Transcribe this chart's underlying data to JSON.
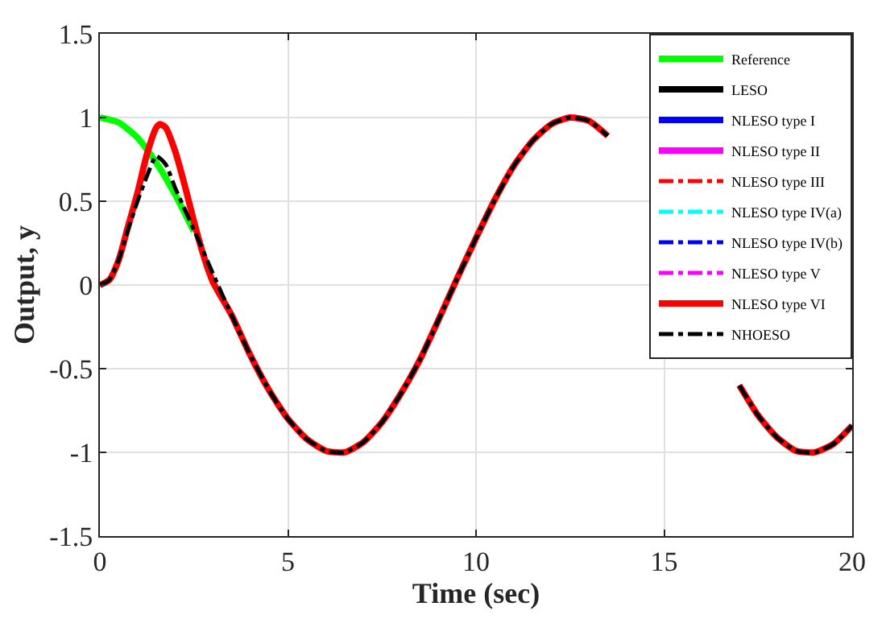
{
  "chart_data": {
    "type": "line",
    "xlabel": "Time (sec)",
    "ylabel": "Output, y",
    "xlim": [
      0,
      20
    ],
    "ylim": [
      -1.5,
      1.5
    ],
    "xticks": [
      0,
      5,
      10,
      15,
      20
    ],
    "yticks": [
      -1.5,
      -1,
      -0.5,
      0,
      0.5,
      1,
      1.5
    ],
    "grid": true,
    "legend": "top right",
    "marker": "none",
    "series": [
      {
        "name": "Reference",
        "color": "#00ff00",
        "line_style": "solid",
        "x": [
          0,
          0.5,
          1,
          1.5,
          2,
          2.5
        ],
        "values": [
          1.0,
          0.97,
          0.88,
          0.73,
          0.54,
          0.32
        ]
      },
      {
        "name": "LESO",
        "color": "#000000",
        "line_style": "solid"
      },
      {
        "name": "NLESO type I",
        "color": "#0000ff",
        "line_style": "solid"
      },
      {
        "name": "NLESO type II",
        "color": "#ff00ff",
        "line_style": "solid"
      },
      {
        "name": "NLESO type III",
        "color": "#ff0000",
        "line_style": "dashdot"
      },
      {
        "name": "NLESO type IV(a)",
        "color": "#00ffff",
        "line_style": "dashdot"
      },
      {
        "name": "NLESO type IV(b)",
        "color": "#0000ff",
        "line_style": "dashdot"
      },
      {
        "name": "NLESO type V",
        "color": "#ff00ff",
        "line_style": "dashdot"
      },
      {
        "name": "NLESO type VI",
        "color": "#ff0000",
        "line_style": "solid",
        "x": [
          0,
          0.25,
          0.5,
          0.75,
          1,
          1.25,
          1.5,
          1.6,
          1.75,
          2,
          2.25,
          2.5,
          2.75,
          3,
          3.5,
          4,
          4.5,
          5,
          5.5,
          6,
          6.5,
          7,
          7.5,
          8,
          8.5,
          9,
          9.5,
          10,
          10.5,
          11,
          11.5,
          12,
          12.5,
          13,
          13.5,
          14,
          14.5,
          15,
          15.5,
          16,
          16.5,
          17,
          17.5,
          18,
          18.5,
          19,
          19.5,
          20
        ],
        "values": [
          0,
          0.03,
          0.15,
          0.35,
          0.55,
          0.78,
          0.94,
          0.96,
          0.94,
          0.8,
          0.6,
          0.38,
          0.18,
          0.02,
          -0.18,
          -0.42,
          -0.63,
          -0.8,
          -0.92,
          -0.99,
          -1.0,
          -0.94,
          -0.82,
          -0.65,
          -0.45,
          -0.21,
          0.04,
          0.28,
          0.51,
          0.71,
          0.86,
          0.96,
          1.0,
          0.98,
          0.89,
          null,
          null,
          null,
          null,
          null,
          null,
          -0.6,
          -0.78,
          -0.91,
          -0.99,
          -1.0,
          -0.95,
          -0.84
        ]
      },
      {
        "name": "NHOESO",
        "color": "#000000",
        "line_style": "dashdot",
        "x": [
          0,
          0.25,
          0.5,
          0.75,
          1,
          1.25,
          1.5,
          1.75,
          2,
          2.5,
          3,
          3.5,
          4,
          4.5,
          5,
          5.5,
          6,
          6.5,
          7,
          7.5,
          8,
          8.5,
          9,
          9.5,
          10,
          10.5,
          11,
          11.5,
          12,
          12.5,
          13,
          13.5,
          14,
          14.5,
          15,
          15.5,
          16,
          16.5,
          17,
          17.5,
          18,
          18.5,
          19,
          19.5,
          20
        ],
        "values": [
          0,
          0.03,
          0.15,
          0.33,
          0.5,
          0.65,
          0.77,
          0.72,
          0.58,
          0.33,
          0.07,
          -0.18,
          -0.42,
          -0.63,
          -0.8,
          -0.92,
          -0.99,
          -1.0,
          -0.94,
          -0.82,
          -0.65,
          -0.45,
          -0.21,
          0.04,
          0.28,
          0.51,
          0.71,
          0.86,
          0.96,
          1.0,
          0.98,
          0.89,
          null,
          null,
          null,
          null,
          null,
          null,
          -0.6,
          -0.78,
          -0.91,
          -0.99,
          -1.0,
          -0.95,
          -0.84
        ]
      }
    ]
  }
}
